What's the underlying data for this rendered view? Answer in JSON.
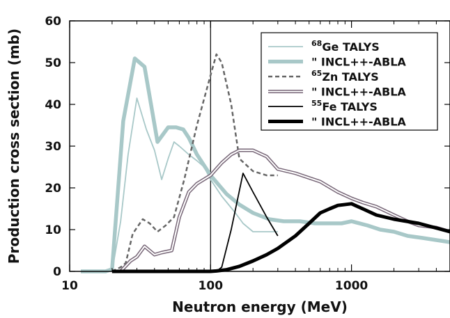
{
  "chart_data": {
    "type": "line",
    "xlabel": "Neutron energy (MeV)",
    "ylabel": "Production cross section (mb)",
    "xscale": "log",
    "xlim": [
      10,
      5000
    ],
    "ylim": [
      0,
      60
    ],
    "x_ticks": [
      10,
      100,
      1000
    ],
    "x_tick_labels": [
      "10",
      "100",
      "1000"
    ],
    "y_ticks": [
      0,
      10,
      20,
      30,
      40,
      50,
      60
    ],
    "y_tick_labels": [
      "0",
      "10",
      "20",
      "30",
      "40",
      "50",
      "60"
    ],
    "reference_line_x": 100,
    "legend_position": "top-right",
    "series": [
      {
        "id": "ge-talys",
        "legend_sup": "68",
        "legend_label": "Ge TALYS",
        "color": "#a8c8c8",
        "style": "thin",
        "x": [
          20,
          23,
          26,
          30,
          35,
          40,
          45,
          50,
          55,
          60,
          70,
          80,
          90,
          100,
          120,
          150,
          170,
          200,
          250,
          300
        ],
        "y": [
          0,
          12,
          28,
          41.5,
          34,
          29,
          22,
          27,
          31,
          30,
          28,
          26.5,
          25,
          22,
          18,
          14,
          11.5,
          9.5,
          9.5,
          9.5
        ]
      },
      {
        "id": "ge-incl",
        "legend_sup": "",
        "legend_label": "\" INCL++-ABLA",
        "color": "#a8c8c8",
        "style": "thick",
        "x": [
          12,
          18,
          20,
          24,
          29,
          34,
          42,
          50,
          57,
          64,
          70,
          80,
          100,
          130,
          160,
          200,
          260,
          330,
          430,
          550,
          700,
          850,
          1000,
          1300,
          1600,
          2000,
          2500,
          3200,
          4000,
          5000
        ],
        "y": [
          0,
          0,
          0.5,
          36,
          51,
          49,
          31,
          34.5,
          34.5,
          34,
          32,
          28,
          23,
          18.5,
          16,
          14,
          12.5,
          12,
          12,
          11.5,
          11.5,
          11.5,
          12,
          11,
          10,
          9.5,
          8.5,
          8,
          7.5,
          7
        ]
      },
      {
        "id": "zn-talys",
        "legend_sup": "65",
        "legend_label": "Zn TALYS",
        "color": "#666666",
        "style": "dashed",
        "x": [
          20,
          23,
          25,
          28,
          33,
          37,
          42,
          48,
          55,
          65,
          80,
          100,
          110,
          120,
          140,
          160,
          200,
          250,
          300
        ],
        "y": [
          0,
          1,
          2,
          9,
          12.5,
          11.5,
          9.5,
          11,
          13,
          22,
          35,
          47,
          52,
          50,
          40,
          27,
          24,
          23,
          23
        ]
      },
      {
        "id": "zn-incl",
        "legend_sup": "",
        "legend_label": "\" INCL++-ABLA",
        "color": "#776677",
        "style": "double",
        "x": [
          20,
          23,
          27,
          30,
          34,
          40,
          45,
          53,
          60,
          70,
          80,
          100,
          120,
          140,
          160,
          200,
          250,
          300,
          400,
          600,
          800,
          1000,
          1200,
          1500,
          2000,
          2500,
          3000,
          4000,
          5000
        ],
        "y": [
          0,
          0,
          2.5,
          3.5,
          6,
          4,
          4.5,
          5,
          13,
          19,
          21,
          23,
          26,
          28,
          29,
          29,
          27.5,
          24.5,
          23.5,
          21.5,
          19,
          17.5,
          16.5,
          15.5,
          13.5,
          12,
          11,
          10.5,
          9.5
        ]
      },
      {
        "id": "fe-talys",
        "legend_sup": "55",
        "legend_label": "Fe TALYS",
        "color": "#000000",
        "style": "thin",
        "x": [
          100,
          110,
          120,
          140,
          170,
          200,
          250,
          300
        ],
        "y": [
          0,
          0,
          1,
          10,
          23.5,
          19,
          13,
          8.5
        ]
      },
      {
        "id": "fe-incl",
        "legend_sup": "",
        "legend_label": "\" INCL++-ABLA",
        "color": "#000000",
        "style": "heavy",
        "x": [
          20,
          100,
          110,
          130,
          160,
          200,
          250,
          300,
          400,
          500,
          600,
          700,
          800,
          1000,
          1200,
          1500,
          2000,
          3000,
          5000
        ],
        "y": [
          0,
          0,
          0.1,
          0.4,
          1.2,
          2.5,
          4,
          5.5,
          8.5,
          11.5,
          14,
          15,
          15.8,
          16.2,
          15,
          13.5,
          12.5,
          11.5,
          9.5
        ]
      }
    ]
  }
}
